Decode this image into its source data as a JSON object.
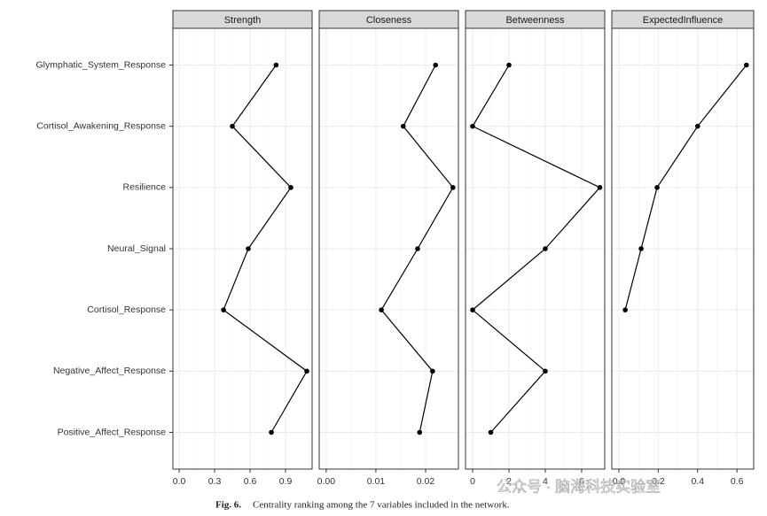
{
  "chart_data": {
    "type": "line",
    "categories": [
      "Glymphatic_System_Response",
      "Cortisol_Awakening_Response",
      "Resilience",
      "Neural_Signal",
      "Cortisol_Response",
      "Negative_Affect_Response",
      "Positive_Affect_Response"
    ],
    "color": "#000000",
    "grid": true,
    "facets": [
      {
        "title": "Strength",
        "values": [
          0.82,
          0.45,
          0.945,
          0.585,
          0.375,
          1.08,
          0.78
        ],
        "xlim": [
          -0.053,
          1.125
        ],
        "xticks": [
          {
            "value": 0,
            "label": "0.0"
          },
          0.3,
          0.6,
          0.9
        ]
      },
      {
        "title": "Closeness",
        "values": [
          0.022,
          0.0155,
          0.0255,
          0.0184,
          0.0111,
          0.0214,
          0.0188
        ],
        "xlim": [
          -0.0014,
          0.0266
        ],
        "xticks": [
          {
            "value": 0,
            "label": "0.00"
          },
          0.01,
          0.02
        ]
      },
      {
        "title": "Betweenness",
        "values": [
          2,
          0,
          7,
          4,
          0,
          4,
          1
        ],
        "xlim": [
          -0.39,
          7.27
        ],
        "xticks": [
          0,
          2,
          4,
          6
        ]
      },
      {
        "title": "ExpectedInfluence",
        "values": [
          0.648,
          0.4,
          0.194,
          0.113,
          0.032,
          null,
          null
        ],
        "xlim": [
          -0.036,
          0.685
        ],
        "xticks": [
          {
            "value": 0,
            "label": "0.0"
          },
          0.2,
          0.4,
          0.6
        ]
      }
    ]
  },
  "caption": {
    "label": "Fig. 6.",
    "text": "Centrality ranking among the 7 variables included in the network."
  },
  "watermark": "公众号 · 脑海科技实验室"
}
